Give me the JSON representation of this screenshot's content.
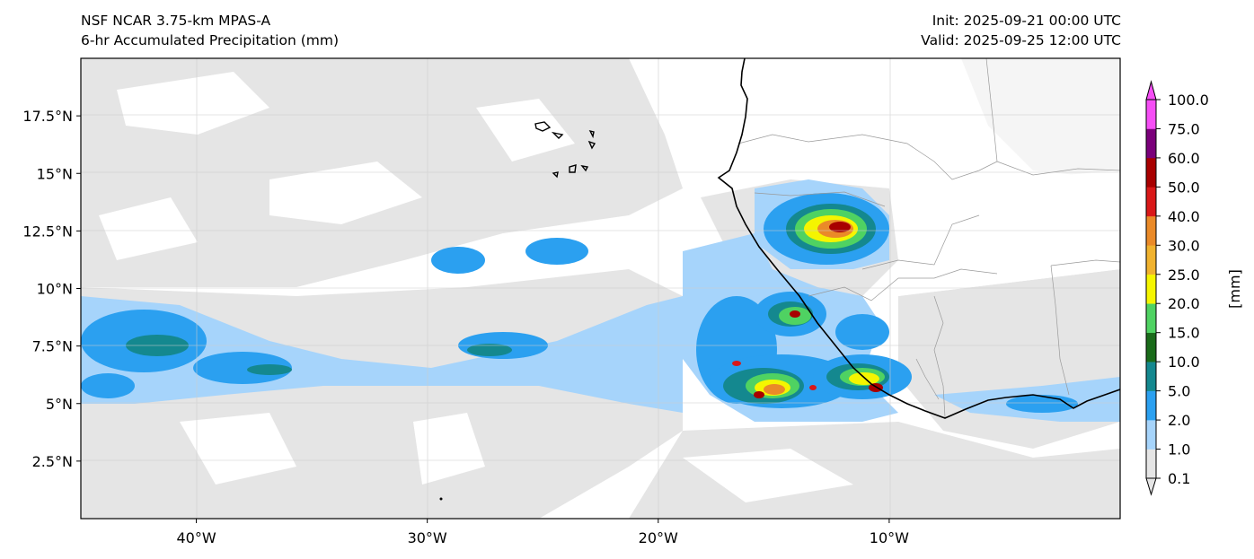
{
  "header": {
    "model": "NSF NCAR 3.75-km MPAS-A",
    "field": "6-hr Accumulated Precipitation (mm)",
    "init": "Init: 2025-09-21 00:00 UTC",
    "valid": "Valid: 2025-09-25 12:00 UTC"
  },
  "map": {
    "extent": {
      "lon": [
        -45,
        0
      ],
      "lat": [
        0,
        20
      ]
    },
    "lon_ticks": [
      {
        "value": -40,
        "label": "40°W"
      },
      {
        "value": -30,
        "label": "30°W"
      },
      {
        "value": -20,
        "label": "20°W"
      },
      {
        "value": -10,
        "label": "10°W"
      }
    ],
    "lat_ticks": [
      {
        "value": 2.5,
        "label": "2.5°N"
      },
      {
        "value": 5,
        "label": "5°N"
      },
      {
        "value": 7.5,
        "label": "7.5°N"
      },
      {
        "value": 10,
        "label": "10°N"
      },
      {
        "value": 12.5,
        "label": "12.5°N"
      },
      {
        "value": 15,
        "label": "15°N"
      },
      {
        "value": 17.5,
        "label": "17.5°N"
      }
    ],
    "gridlines": true
  },
  "colorbar": {
    "unit_label": "[mm]",
    "levels": [
      {
        "label": "0.1",
        "color": "#e5e5e5"
      },
      {
        "label": "1.0",
        "color": "#a6d4fb"
      },
      {
        "label": "2.0",
        "color": "#2ba0f0"
      },
      {
        "label": "5.0",
        "color": "#14888f"
      },
      {
        "label": "10.0",
        "color": "#1a6b1a"
      },
      {
        "label": "15.0",
        "color": "#4fd262"
      },
      {
        "label": "20.0",
        "color": "#f5f500"
      },
      {
        "label": "25.0",
        "color": "#f0b22e"
      },
      {
        "label": "30.0",
        "color": "#ea8a28"
      },
      {
        "label": "40.0",
        "color": "#d91818"
      },
      {
        "label": "50.0",
        "color": "#a80000"
      },
      {
        "label": "60.0",
        "color": "#7a007a"
      },
      {
        "label": "75.0",
        "color": "#f54ef5"
      },
      {
        "label": "100.0",
        "color": "#ffffff"
      }
    ]
  }
}
